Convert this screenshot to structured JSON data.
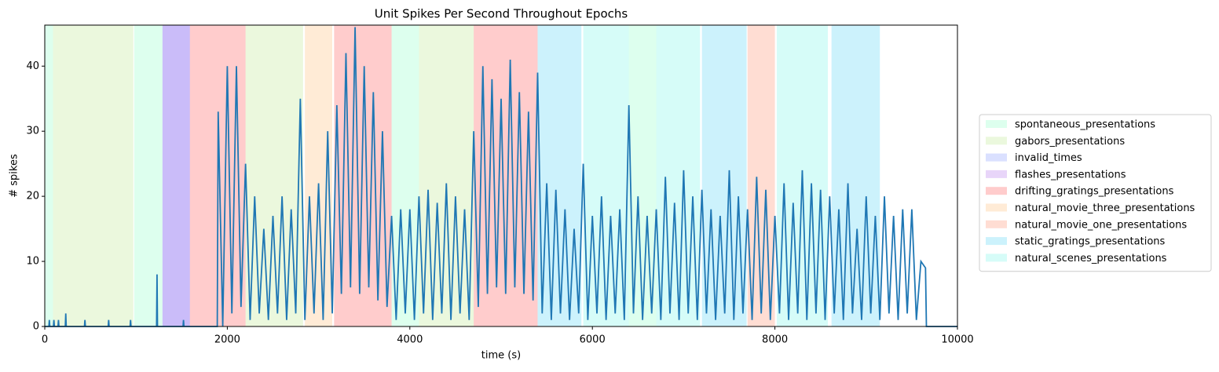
{
  "chart_data": {
    "type": "line",
    "title": "Unit Spikes Per Second Throughout Epochs",
    "x_label": "time (s)",
    "y_label": "# spikes",
    "xlim": [
      0,
      10000
    ],
    "xticks": [
      0,
      2000,
      4000,
      6000,
      8000,
      10000
    ],
    "ylim": [
      0,
      46.3
    ],
    "yticks": [
      0,
      10,
      20,
      30,
      40
    ],
    "legend": "outside right",
    "epochs": [
      {
        "name": "spontaneous_presentations",
        "color": "#55ffaa",
        "spans": [
          [
            0,
            90
          ],
          [
            980,
            1290
          ],
          [
            3800,
            4100
          ],
          [
            6400,
            6700
          ]
        ]
      },
      {
        "name": "gabors_presentations",
        "color": "#99dd55",
        "spans": [
          [
            90,
            970
          ],
          [
            2200,
            2830
          ],
          [
            4100,
            4700
          ]
        ]
      },
      {
        "name": "invalid_times",
        "color": "#4466ff",
        "spans": [
          [
            1290,
            1590
          ]
        ]
      },
      {
        "name": "flashes_presentations",
        "color": "#8a2be2",
        "spans": [
          [
            1290,
            1590
          ]
        ]
      },
      {
        "name": "drifting_gratings_presentations",
        "color": "#ff0000",
        "spans": [
          [
            1590,
            2200
          ],
          [
            3170,
            3800
          ],
          [
            4700,
            5400
          ]
        ]
      },
      {
        "name": "natural_movie_three_presentations",
        "color": "#ff9933",
        "spans": [
          [
            2850,
            3150
          ]
        ]
      },
      {
        "name": "natural_movie_one_presentations",
        "color": "#ff5522",
        "spans": [
          [
            7700,
            8000
          ]
        ]
      },
      {
        "name": "static_gratings_presentations",
        "color": "#00bfee",
        "spans": [
          [
            5400,
            5880
          ],
          [
            7200,
            7690
          ],
          [
            8620,
            9150
          ]
        ]
      },
      {
        "name": "natural_scenes_presentations",
        "color": "#33eedd",
        "spans": [
          [
            5900,
            6400
          ],
          [
            6700,
            7180
          ],
          [
            8020,
            8580
          ]
        ]
      }
    ],
    "line": {
      "color": "#1f77b4",
      "x": [
        0,
        45,
        50,
        55,
        95,
        100,
        105,
        145,
        150,
        155,
        225,
        230,
        235,
        435,
        440,
        445,
        695,
        700,
        705,
        935,
        940,
        945,
        1225,
        1230,
        1235,
        1515,
        1520,
        1525,
        1890,
        1900,
        1950,
        2000,
        2050,
        2100,
        2150,
        2200,
        2250,
        2300,
        2350,
        2400,
        2450,
        2500,
        2550,
        2600,
        2650,
        2700,
        2750,
        2800,
        2850,
        2900,
        2950,
        3000,
        3050,
        3100,
        3150,
        3200,
        3250,
        3300,
        3350,
        3400,
        3450,
        3500,
        3550,
        3600,
        3650,
        3700,
        3750,
        3800,
        3850,
        3900,
        3950,
        4000,
        4050,
        4100,
        4150,
        4200,
        4250,
        4300,
        4350,
        4400,
        4450,
        4500,
        4550,
        4600,
        4650,
        4700,
        4750,
        4800,
        4850,
        4900,
        4950,
        5000,
        5050,
        5100,
        5150,
        5200,
        5250,
        5300,
        5350,
        5400,
        5450,
        5500,
        5550,
        5600,
        5650,
        5700,
        5750,
        5800,
        5850,
        5900,
        5950,
        6000,
        6050,
        6100,
        6150,
        6200,
        6250,
        6300,
        6350,
        6400,
        6450,
        6500,
        6550,
        6600,
        6650,
        6700,
        6750,
        6800,
        6850,
        6900,
        6950,
        7000,
        7050,
        7100,
        7150,
        7200,
        7250,
        7300,
        7350,
        7400,
        7450,
        7500,
        7550,
        7600,
        7650,
        7700,
        7750,
        7800,
        7850,
        7900,
        7950,
        8000,
        8050,
        8100,
        8150,
        8200,
        8250,
        8300,
        8350,
        8400,
        8450,
        8500,
        8550,
        8600,
        8650,
        8700,
        8750,
        8800,
        8850,
        8900,
        8950,
        9000,
        9050,
        9100,
        9150,
        9200,
        9250,
        9300,
        9350,
        9400,
        9450,
        9500,
        9550,
        9600,
        9650,
        9660,
        10000
      ],
      "values": [
        0,
        0,
        1,
        0,
        0,
        1,
        0,
        0,
        1,
        0,
        0,
        2,
        0,
        0,
        1,
        0,
        0,
        1,
        0,
        0,
        1,
        0,
        0,
        8,
        0,
        0,
        1,
        0,
        0,
        33,
        0,
        40,
        2,
        40,
        3,
        25,
        1,
        20,
        2,
        15,
        1,
        17,
        2,
        20,
        1,
        18,
        2,
        35,
        1,
        20,
        2,
        22,
        1,
        30,
        2,
        34,
        5,
        42,
        6,
        46,
        5,
        40,
        6,
        36,
        4,
        30,
        3,
        17,
        1,
        18,
        2,
        18,
        1,
        20,
        2,
        21,
        1,
        19,
        2,
        22,
        1,
        20,
        2,
        18,
        1,
        30,
        3,
        40,
        5,
        38,
        6,
        35,
        5,
        41,
        6,
        36,
        5,
        33,
        4,
        39,
        2,
        22,
        1,
        21,
        2,
        18,
        1,
        15,
        2,
        25,
        1,
        17,
        2,
        20,
        1,
        17,
        2,
        18,
        1,
        34,
        2,
        20,
        1,
        17,
        2,
        18,
        1,
        23,
        2,
        19,
        1,
        24,
        2,
        20,
        1,
        21,
        2,
        18,
        1,
        17,
        2,
        24,
        1,
        20,
        2,
        18,
        1,
        23,
        2,
        21,
        1,
        17,
        2,
        22,
        1,
        19,
        2,
        24,
        1,
        22,
        2,
        21,
        1,
        20,
        2,
        18,
        1,
        22,
        2,
        15,
        1,
        20,
        2,
        17,
        1,
        20,
        2,
        17,
        1,
        18,
        2,
        18,
        1,
        10,
        9,
        0,
        0
      ]
    }
  }
}
